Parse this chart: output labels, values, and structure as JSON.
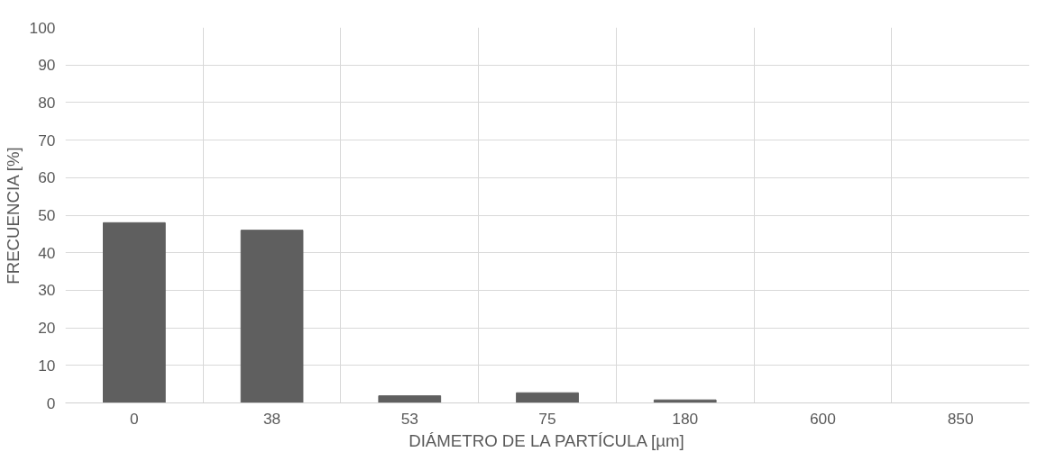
{
  "chart_data": {
    "type": "bar",
    "xlabel": "DIÁMETRO DE LA PARTÍCULA [µm]",
    "ylabel": "FRECUENCIA [%]",
    "categories": [
      "0",
      "38",
      "53",
      "75",
      "180",
      "600",
      "850"
    ],
    "values": [
      48,
      46,
      1.9,
      2.7,
      0.8,
      0,
      0
    ],
    "color": "#5f5f5f",
    "ylim": [
      0,
      100
    ],
    "yticks": [
      0,
      10,
      20,
      30,
      40,
      50,
      60,
      70,
      80,
      90,
      100
    ],
    "grid": true
  }
}
